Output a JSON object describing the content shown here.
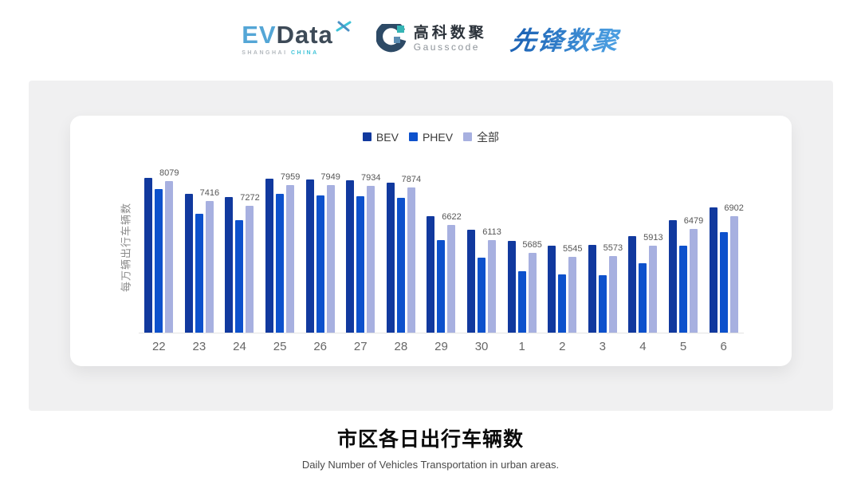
{
  "header": {
    "evdata": {
      "ev": "EV",
      "data": "Data",
      "sub_left": "SHANGHAI",
      "sub_right": "CHINA"
    },
    "gausscode": {
      "cn": "高科数聚",
      "en": "Gausscode"
    },
    "xianfeng": {
      "text": "先锋数聚"
    }
  },
  "chart": {
    "y_axis_title": "每万辆出行车辆数"
  },
  "chart_data": {
    "type": "bar",
    "title": "市区各日出行车辆数",
    "ylabel": "每万辆出行车辆数",
    "categories": [
      "22",
      "23",
      "24",
      "25",
      "26",
      "27",
      "28",
      "29",
      "30",
      "1",
      "2",
      "3",
      "4",
      "5",
      "6"
    ],
    "series": [
      {
        "key": "bev",
        "name": "BEV",
        "color": "#11399e",
        "show_labels": false,
        "values": [
          8200,
          7670,
          7560,
          8160,
          8140,
          8120,
          8040,
          6920,
          6460,
          6070,
          5910,
          5950,
          6240,
          6790,
          7200
        ]
      },
      {
        "key": "phev",
        "name": "PHEV",
        "color": "#0d51cc",
        "show_labels": false,
        "values": [
          7830,
          6980,
          6770,
          7650,
          7620,
          7590,
          7540,
          6110,
          5520,
          5070,
          4950,
          4940,
          5340,
          5930,
          6370
        ]
      },
      {
        "key": "all",
        "name": "全部",
        "color": "#a7b0e0",
        "show_labels": true,
        "values": [
          8079,
          7416,
          7272,
          7959,
          7949,
          7934,
          7874,
          6622,
          6113,
          5685,
          5545,
          5573,
          5913,
          6479,
          6902
        ]
      }
    ],
    "y_min": 3000,
    "y_max": 8600,
    "grid": false,
    "legend_position": "top",
    "note": "BEV/PHEV values estimated from bar heights; 全部 values are the printed data labels"
  },
  "footer": {
    "title": "市区各日出行车辆数",
    "subtitle": "Daily Number of Vehicles Transportation in urban areas."
  }
}
